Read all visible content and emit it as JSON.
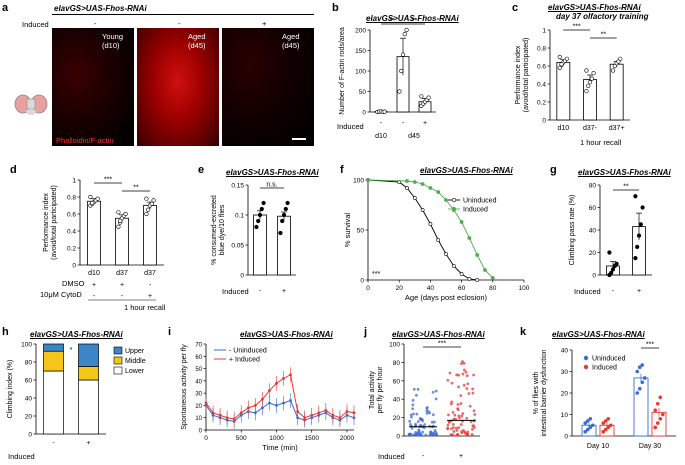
{
  "figure": {
    "a": {
      "label": "a",
      "title": "elavGS>UAS-Fhos-RNAi",
      "induced_label": "Induced",
      "induced_marks": [
        "-",
        "-",
        "+"
      ],
      "panels": [
        {
          "line1": "Young",
          "line2": "(d10)"
        },
        {
          "line1": "Aged",
          "line2": "(d45)"
        },
        {
          "line1": "Aged",
          "line2": "(d45)"
        }
      ],
      "stain_label": "Phalloidin/F-actin"
    },
    "b": {
      "label": "b",
      "title": "elavGS>UAS-Fhos-RNAi",
      "sig": [
        "**",
        "**"
      ],
      "induced_label": "Induced"
    },
    "c": {
      "label": "c",
      "title": "elavGS>UAS-Fhos-RNAi",
      "subtitle": "day 37 olfactory training",
      "sig": [
        "***",
        "**"
      ],
      "footer": "1 hour recall"
    },
    "d": {
      "label": "d",
      "sig": [
        "***",
        "**"
      ],
      "dmso_label": "DMSO",
      "cytod_label": "10μM CytoD",
      "dmso_marks": [
        "+",
        "+",
        "-"
      ],
      "cytod_marks": [
        "-",
        "-",
        "+"
      ],
      "footer": "1 hour recall"
    },
    "e": {
      "label": "e",
      "title": "elavGS>UAS-Fhos-RNAi",
      "sig": "n.s.",
      "induced_label": "Induced"
    },
    "f": {
      "label": "f",
      "title": "elavGS>UAS-Fhos-RNAi",
      "sig": "***"
    },
    "g": {
      "label": "g",
      "title": "elavGS>UAS-Fhos-RNAi",
      "sig": "**",
      "induced_label": "Induced"
    },
    "h": {
      "label": "h",
      "title": "elavGS>UAS-Fhos-RNAi",
      "sig": "*",
      "induced_label": "Induced"
    },
    "i": {
      "label": "i",
      "title": "elavGS>UAS-Fhos-RNAi"
    },
    "j": {
      "label": "j",
      "title": "elavGS>UAS-Fhos-RNAi",
      "sig": "***",
      "induced_label": "Induced"
    },
    "k": {
      "label": "k",
      "title": "elavGS>UAS-Fhos-RNAi",
      "sig": "***"
    }
  },
  "chart_data": [
    {
      "id": "b",
      "type": "bar",
      "categories": [
        "d10 -",
        "d45 -",
        "d45 +"
      ],
      "group_labels": [
        "d10",
        "d45"
      ],
      "induced": [
        "-",
        "-",
        "+"
      ],
      "values": [
        1,
        135,
        25
      ],
      "errors": [
        1,
        45,
        8
      ],
      "ylabel": "Number of F-actin rods/area",
      "ylim": [
        0,
        200
      ],
      "yticks": [
        0,
        50,
        100,
        150,
        200
      ],
      "bar_colors": [
        "#ffffff",
        "#ffffff",
        "#ffffff"
      ],
      "points": [
        [
          0,
          1,
          2,
          0,
          1
        ],
        [
          50,
          100,
          140,
          190,
          200
        ],
        [
          15,
          20,
          25,
          30,
          35,
          38
        ]
      ]
    },
    {
      "id": "c",
      "type": "bar",
      "categories": [
        "d10",
        "d37-",
        "d37+"
      ],
      "values": [
        0.64,
        0.45,
        0.62
      ],
      "errors": [
        0.03,
        0.05,
        0.03
      ],
      "ylabel": "Performance index (avoid/total participated)",
      "ylim": [
        0,
        1.0
      ],
      "yticks": [
        0,
        0.2,
        0.4,
        0.6,
        0.8,
        1.0
      ],
      "points": [
        [
          0.58,
          0.61,
          0.64,
          0.66,
          0.68,
          0.7,
          0.62
        ],
        [
          0.32,
          0.38,
          0.42,
          0.46,
          0.52,
          0.55
        ],
        [
          0.55,
          0.6,
          0.63,
          0.65,
          0.68
        ]
      ]
    },
    {
      "id": "d",
      "type": "bar",
      "categories": [
        "d10",
        "d37",
        "d37"
      ],
      "values": [
        0.75,
        0.55,
        0.7
      ],
      "errors": [
        0.03,
        0.04,
        0.04
      ],
      "ylabel": "Performance index (avoid/total participated)",
      "ylim": [
        0,
        1.0
      ],
      "yticks": [
        0,
        0.2,
        0.4,
        0.6,
        0.8,
        1.0
      ],
      "points": [
        [
          0.7,
          0.72,
          0.74,
          0.76,
          0.78,
          0.8,
          0.73
        ],
        [
          0.45,
          0.5,
          0.55,
          0.58,
          0.6,
          0.62,
          0.52
        ],
        [
          0.6,
          0.65,
          0.7,
          0.72,
          0.76,
          0.78
        ]
      ]
    },
    {
      "id": "e",
      "type": "bar",
      "categories": [
        "-",
        "+"
      ],
      "values": [
        0.1,
        0.098
      ],
      "errors": [
        0.007,
        0.007
      ],
      "ylabel": "% consumed-excreted blue dye/10 flies",
      "ylim": [
        0,
        0.15
      ],
      "yticks": [
        0,
        0.05,
        0.1,
        0.15
      ],
      "points": [
        [
          0.08,
          0.09,
          0.1,
          0.11,
          0.12
        ],
        [
          0.07,
          0.09,
          0.1,
          0.11,
          0.12
        ]
      ]
    },
    {
      "id": "f",
      "type": "line",
      "title": "",
      "xlabel": "Age (days post eclosion)",
      "ylabel": "% survival",
      "xlim": [
        0,
        100
      ],
      "ylim": [
        0,
        100
      ],
      "xticks": [
        0,
        20,
        40,
        60,
        80,
        100
      ],
      "yticks": [
        0,
        50,
        100
      ],
      "series": [
        {
          "name": "Uninduced",
          "color": "#000000",
          "x": [
            0,
            20,
            25,
            30,
            35,
            40,
            45,
            50,
            55,
            60,
            65,
            70
          ],
          "y": [
            100,
            98,
            92,
            82,
            70,
            56,
            40,
            26,
            14,
            6,
            1,
            0
          ]
        },
        {
          "name": "Induced",
          "color": "#4caf50",
          "x": [
            0,
            25,
            30,
            35,
            40,
            45,
            50,
            55,
            60,
            65,
            70,
            75,
            80
          ],
          "y": [
            100,
            99,
            98,
            96,
            92,
            88,
            80,
            70,
            58,
            42,
            25,
            10,
            2
          ]
        }
      ]
    },
    {
      "id": "g",
      "type": "bar",
      "categories": [
        "-",
        "+"
      ],
      "values": [
        8,
        43
      ],
      "errors": [
        4,
        12
      ],
      "ylabel": "Climbing pass rate (%)",
      "ylim": [
        0,
        80
      ],
      "yticks": [
        0,
        20,
        40,
        60,
        80
      ],
      "points": [
        [
          0,
          2,
          5,
          8,
          10,
          20
        ],
        [
          15,
          25,
          35,
          45,
          60,
          70
        ]
      ]
    },
    {
      "id": "h",
      "type": "bar",
      "categories": [
        "-",
        "+"
      ],
      "ylabel": "Climbing index (%)",
      "ylim": [
        0,
        100
      ],
      "yticks": [
        0,
        20,
        40,
        60,
        80,
        100
      ],
      "series": [
        {
          "name": "Lower",
          "color": "#ffffff",
          "values": [
            70,
            60
          ]
        },
        {
          "name": "Middle",
          "color": "#f5c518",
          "values": [
            22,
            15
          ]
        },
        {
          "name": "Upper",
          "color": "#3a86c8",
          "values": [
            8,
            25
          ]
        }
      ]
    },
    {
      "id": "i",
      "type": "line",
      "xlabel": "Time (min)",
      "ylabel": "Spontaneous activity per fly",
      "xlim": [
        0,
        2100
      ],
      "ylim": [
        0,
        70
      ],
      "xticks": [
        0,
        500,
        1000,
        1500,
        2000
      ],
      "yticks": [
        0,
        10,
        20,
        30,
        40,
        50,
        60,
        70
      ],
      "series": [
        {
          "name": "- Uninduced",
          "color": "#3a6bd1",
          "x": [
            0,
            100,
            200,
            300,
            400,
            500,
            600,
            700,
            800,
            900,
            1000,
            1100,
            1200,
            1300,
            1400,
            1500,
            1600,
            1700,
            1800,
            1900,
            2000,
            2100
          ],
          "y": [
            20,
            12,
            10,
            8,
            7,
            12,
            15,
            14,
            18,
            22,
            20,
            22,
            24,
            10,
            8,
            10,
            12,
            14,
            10,
            8,
            12,
            10
          ]
        },
        {
          "name": "+ Induced",
          "color": "#e53935",
          "x": [
            0,
            100,
            200,
            300,
            400,
            500,
            600,
            700,
            800,
            900,
            1000,
            1100,
            1200,
            1300,
            1400,
            1500,
            1600,
            1700,
            1800,
            1900,
            2000,
            2100
          ],
          "y": [
            22,
            14,
            12,
            10,
            9,
            14,
            18,
            20,
            25,
            32,
            38,
            42,
            45,
            15,
            10,
            12,
            14,
            16,
            12,
            10,
            15,
            14
          ]
        }
      ]
    },
    {
      "id": "j",
      "type": "scatter",
      "categories": [
        "-",
        "+"
      ],
      "ylabel": "Total activity per fly per hour",
      "ylim": [
        0,
        100
      ],
      "yticks": [
        0,
        20,
        40,
        60,
        80,
        100
      ],
      "means": [
        10,
        17
      ],
      "colors": [
        "#3a6bd1",
        "#e53935"
      ]
    },
    {
      "id": "k",
      "type": "bar",
      "categories": [
        "Day 10",
        "Day 30"
      ],
      "ylabel": "% of flies with intestinal barrier dysfunction",
      "ylim": [
        0,
        40
      ],
      "yticks": [
        0,
        10,
        20,
        30,
        40
      ],
      "series": [
        {
          "name": "Uninduced",
          "color": "#3a6bd1",
          "values": [
            5,
            27
          ],
          "errors": [
            1,
            2
          ]
        },
        {
          "name": "Induced",
          "color": "#e53935",
          "values": [
            5,
            11
          ],
          "errors": [
            1,
            2
          ]
        }
      ],
      "points": [
        [
          [
            2,
            3,
            4,
            5,
            6,
            7,
            8
          ],
          [
            2,
            3,
            4,
            5,
            6,
            7,
            8
          ]
        ],
        [
          [
            20,
            22,
            25,
            27,
            30,
            32,
            33
          ],
          [
            4,
            6,
            8,
            10,
            12,
            15,
            18
          ]
        ]
      ]
    }
  ]
}
